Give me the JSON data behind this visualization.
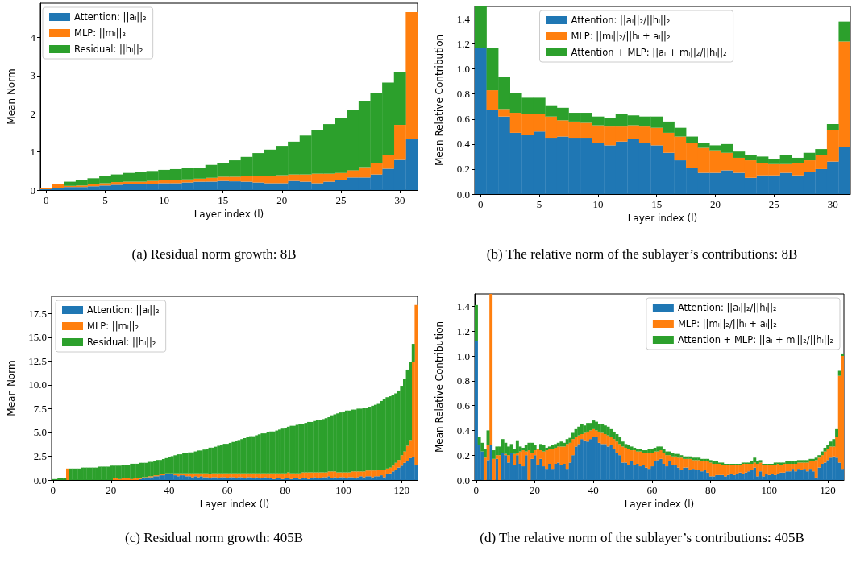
{
  "chart_data": [
    {
      "type": "bar",
      "title": "(a) Residual norm growth: 8B",
      "xlabel": "Layer index (l)",
      "ylabel": "Mean Norm",
      "legend": "top left",
      "stacked": true,
      "x": [
        0,
        1,
        2,
        3,
        4,
        5,
        6,
        7,
        8,
        9,
        10,
        11,
        12,
        13,
        14,
        15,
        16,
        17,
        18,
        19,
        20,
        21,
        22,
        23,
        24,
        25,
        26,
        27,
        28,
        29,
        30,
        31
      ],
      "xlim": [
        -0.5,
        31.5
      ],
      "xticks": [
        0,
        5,
        10,
        15,
        20,
        25,
        30
      ],
      "ylim": [
        0,
        4.9
      ],
      "yticks": [
        0,
        1,
        2,
        3,
        4
      ],
      "series": [
        {
          "name": "Attention: ||aₗ||₂",
          "color": "#1f77b4",
          "values": [
            0.02,
            0.06,
            0.08,
            0.08,
            0.1,
            0.12,
            0.14,
            0.15,
            0.15,
            0.16,
            0.18,
            0.18,
            0.2,
            0.22,
            0.22,
            0.24,
            0.23,
            0.22,
            0.2,
            0.18,
            0.18,
            0.24,
            0.22,
            0.18,
            0.22,
            0.26,
            0.33,
            0.33,
            0.41,
            0.56,
            0.79,
            1.33
          ]
        },
        {
          "name": "MLP: ||mₗ||₂",
          "color": "#ff7f0e",
          "values": [
            0.03,
            0.09,
            0.03,
            0.04,
            0.06,
            0.06,
            0.07,
            0.07,
            0.07,
            0.08,
            0.08,
            0.08,
            0.08,
            0.08,
            0.1,
            0.11,
            0.12,
            0.15,
            0.17,
            0.19,
            0.21,
            0.17,
            0.19,
            0.25,
            0.21,
            0.19,
            0.19,
            0.27,
            0.3,
            0.36,
            0.92,
            3.34
          ]
        },
        {
          "name": "Residual: ||hₗ||₂",
          "color": "#2ca02c",
          "values": [
            null,
            null,
            0.11,
            0.14,
            0.15,
            0.18,
            0.2,
            0.23,
            0.25,
            0.26,
            0.27,
            0.29,
            0.29,
            0.29,
            0.34,
            0.35,
            0.43,
            0.5,
            0.6,
            0.69,
            0.77,
            0.86,
            1.02,
            1.15,
            1.3,
            1.45,
            1.57,
            1.74,
            1.84,
            1.9,
            1.38,
            null
          ]
        }
      ]
    },
    {
      "type": "bar",
      "title": "(b) The relative norm of the sublayer’s contributions: 8B",
      "xlabel": "Layer index (l)",
      "ylabel": "Mean Relative Contribution",
      "legend": "top",
      "stacked": true,
      "x": [
        0,
        1,
        2,
        3,
        4,
        5,
        6,
        7,
        8,
        9,
        10,
        11,
        12,
        13,
        14,
        15,
        16,
        17,
        18,
        19,
        20,
        21,
        22,
        23,
        24,
        25,
        26,
        27,
        28,
        29,
        30,
        31
      ],
      "xlim": [
        -0.5,
        31.5
      ],
      "xticks": [
        0,
        5,
        10,
        15,
        20,
        25,
        30
      ],
      "ylim": [
        0,
        1.5
      ],
      "yticks": [
        {
          "value": 0,
          "label": "0.0"
        },
        {
          "value": 0.2,
          "label": "0.2"
        },
        {
          "value": 0.4,
          "label": "0.4"
        },
        {
          "value": 0.6,
          "label": "0.6"
        },
        {
          "value": 0.8,
          "label": "0.8"
        },
        {
          "value": 1,
          "label": "1.0"
        },
        {
          "value": 1.2,
          "label": "1.2"
        },
        {
          "value": 1.4,
          "label": "1.4"
        }
      ],
      "series": [
        {
          "name": "Attention: ||aₗ||₂/||hₗ||₂",
          "color": "#1f77b4",
          "values": [
            1.17,
            0.67,
            0.62,
            0.49,
            0.47,
            0.5,
            0.45,
            0.46,
            0.45,
            0.45,
            0.41,
            0.39,
            0.42,
            0.44,
            0.41,
            0.39,
            0.33,
            0.27,
            0.21,
            0.17,
            0.17,
            0.19,
            0.17,
            0.13,
            0.15,
            0.15,
            0.17,
            0.15,
            0.18,
            0.2,
            0.26,
            0.38
          ]
        },
        {
          "name": "MLP: ||mₗ||₂/||hₗ + aₗ||₂",
          "color": "#ff7f0e",
          "values": [
            null,
            0.16,
            0.06,
            0.16,
            0.17,
            0.14,
            0.17,
            0.13,
            0.13,
            0.12,
            0.14,
            0.15,
            0.12,
            0.11,
            0.13,
            0.14,
            0.16,
            0.19,
            0.2,
            0.2,
            0.18,
            0.14,
            0.12,
            0.14,
            0.1,
            0.09,
            0.07,
            0.1,
            0.09,
            0.11,
            0.25,
            0.84
          ]
        },
        {
          "name": "Attention + MLP: ||aₗ + mₗ||₂/||hₗ||₂",
          "color": "#2ca02c",
          "values": [
            0.33,
            0.34,
            0.26,
            0.16,
            0.13,
            0.13,
            0.09,
            0.1,
            0.07,
            0.08,
            0.07,
            0.07,
            0.1,
            0.08,
            0.08,
            0.09,
            0.09,
            0.07,
            0.05,
            0.04,
            0.04,
            0.07,
            0.05,
            0.04,
            0.05,
            0.04,
            0.07,
            0.04,
            0.06,
            0.05,
            0.05,
            0.16
          ]
        }
      ]
    },
    {
      "type": "bar",
      "title": "(c) Residual norm growth: 405B",
      "xlabel": "Layer index (l)",
      "ylabel": "Mean Norm",
      "legend": "top left",
      "stacked": true,
      "x": [
        0,
        1,
        2,
        3,
        4,
        5,
        6,
        7,
        8,
        9,
        10,
        11,
        12,
        13,
        14,
        15,
        16,
        17,
        18,
        19,
        20,
        21,
        22,
        23,
        24,
        25,
        26,
        27,
        28,
        29,
        30,
        31,
        32,
        33,
        34,
        35,
        36,
        37,
        38,
        39,
        40,
        41,
        42,
        43,
        44,
        45,
        46,
        47,
        48,
        49,
        50,
        51,
        52,
        53,
        54,
        55,
        56,
        57,
        58,
        59,
        60,
        61,
        62,
        63,
        64,
        65,
        66,
        67,
        68,
        69,
        70,
        71,
        72,
        73,
        74,
        75,
        76,
        77,
        78,
        79,
        80,
        81,
        82,
        83,
        84,
        85,
        86,
        87,
        88,
        89,
        90,
        91,
        92,
        93,
        94,
        95,
        96,
        97,
        98,
        99,
        100,
        101,
        102,
        103,
        104,
        105,
        106,
        107,
        108,
        109,
        110,
        111,
        112,
        113,
        114,
        115,
        116,
        117,
        118,
        119,
        120,
        121,
        122,
        123,
        124,
        125
      ],
      "xlim": [
        -0.5,
        125.5
      ],
      "xticks": [
        0,
        20,
        40,
        60,
        80,
        100,
        120
      ],
      "ylim": [
        0,
        19.3
      ],
      "yticks": [
        {
          "value": 0,
          "label": "0.0"
        },
        {
          "value": 2.5,
          "label": "2.5"
        },
        {
          "value": 5,
          "label": "5.0"
        },
        {
          "value": 7.5,
          "label": "7.5"
        },
        {
          "value": 10,
          "label": "10.0"
        },
        {
          "value": 12.5,
          "label": "12.5"
        },
        {
          "value": 15,
          "label": "15.0"
        },
        {
          "value": 17.5,
          "label": "17.5"
        }
      ],
      "series": [
        {
          "name": "Attention: ||aₗ||₂",
          "color": "#1f77b4",
          "values": [
            null,
            null,
            null,
            null,
            null,
            null,
            null,
            null,
            null,
            null,
            null,
            null,
            null,
            null,
            null,
            null,
            null,
            null,
            null,
            null,
            null,
            null,
            null,
            null,
            null,
            null,
            null,
            null,
            null,
            null,
            0.1,
            0.2,
            0.2,
            0.3,
            0.3,
            0.4,
            0.4,
            0.5,
            0.5,
            0.6,
            0.6,
            0.6,
            0.5,
            0.4,
            0.5,
            0.5,
            0.4,
            0.4,
            0.3,
            0.4,
            0.3,
            0.4,
            0.3,
            0.3,
            0.2,
            0.3,
            0.3,
            0.2,
            0.3,
            0.3,
            0.2,
            0.3,
            0.3,
            0.2,
            0.3,
            0.3,
            0.2,
            0.3,
            0.3,
            0.2,
            0.3,
            0.2,
            0.2,
            0.3,
            0.2,
            0.2,
            0.1,
            0.2,
            0.2,
            0.1,
            0.2,
            0.2,
            0.1,
            0.2,
            0.2,
            0.1,
            0.2,
            0.2,
            0.1,
            0.2,
            0.3,
            0.2,
            0.2,
            0.3,
            0.3,
            0.4,
            0.2,
            0.3,
            0.2,
            0.3,
            0.3,
            0.2,
            0.3,
            0.3,
            0.2,
            0.3,
            0.4,
            0.3,
            0.4,
            0.4,
            0.3,
            0.4,
            0.4,
            0.5,
            0.3,
            0.6,
            0.7,
            0.9,
            1.1,
            1.3,
            1.5,
            1.8,
            2.0,
            2.3,
            2.4,
            1.6
          ]
        },
        {
          "name": "MLP: ||mₗ||₂",
          "color": "#ff7f0e",
          "values": [
            null,
            null,
            null,
            null,
            null,
            1.2,
            null,
            null,
            null,
            null,
            null,
            null,
            null,
            null,
            null,
            null,
            null,
            null,
            null,
            null,
            null,
            0.2,
            0.2,
            0.1,
            0.2,
            0.2,
            0.2,
            0.1,
            0.2,
            0.2,
            0.1,
            0.1,
            0.1,
            0.1,
            0.1,
            0.1,
            0.1,
            0.1,
            0.1,
            0.1,
            0.1,
            0.1,
            0.2,
            0.3,
            0.2,
            0.2,
            0.3,
            0.3,
            0.4,
            0.3,
            0.4,
            0.3,
            0.4,
            0.4,
            0.4,
            0.4,
            0.4,
            0.5,
            0.4,
            0.4,
            0.5,
            0.4,
            0.4,
            0.5,
            0.4,
            0.4,
            0.5,
            0.4,
            0.4,
            0.5,
            0.4,
            0.5,
            0.5,
            0.4,
            0.5,
            0.5,
            0.6,
            0.5,
            0.5,
            0.6,
            0.5,
            0.6,
            0.6,
            0.5,
            0.5,
            0.6,
            0.6,
            0.6,
            0.7,
            0.6,
            0.5,
            0.6,
            0.6,
            0.5,
            0.5,
            0.5,
            0.7,
            0.6,
            0.6,
            0.5,
            0.5,
            0.6,
            0.5,
            0.6,
            0.7,
            0.6,
            0.5,
            0.6,
            0.6,
            0.6,
            0.7,
            0.6,
            0.7,
            0.6,
            0.8,
            0.6,
            0.6,
            0.6,
            0.7,
            0.8,
            1.1,
            1.2,
            1.6,
            1.9,
            10.0,
            16.8
          ]
        },
        {
          "name": "Residual: ||hₗ||₂",
          "color": "#2ca02c",
          "values": [
            0.1,
            0.1,
            0.2,
            0.2,
            0.2,
            null,
            1.2,
            1.2,
            1.2,
            1.2,
            1.3,
            1.3,
            1.3,
            1.3,
            1.3,
            1.3,
            1.4,
            1.4,
            1.4,
            1.4,
            1.5,
            1.3,
            1.3,
            1.4,
            1.4,
            1.4,
            1.4,
            1.6,
            1.5,
            1.5,
            1.6,
            1.5,
            1.5,
            1.5,
            1.5,
            1.5,
            1.6,
            1.5,
            1.6,
            1.6,
            1.7,
            1.8,
            1.9,
            2.0,
            2.0,
            2.1,
            2.1,
            2.2,
            2.2,
            2.3,
            2.4,
            2.4,
            2.5,
            2.6,
            2.8,
            2.7,
            2.8,
            2.9,
            3.0,
            3.1,
            3.1,
            3.2,
            3.3,
            3.4,
            3.5,
            3.6,
            3.7,
            3.8,
            3.9,
            3.9,
            4.0,
            4.1,
            4.2,
            4.2,
            4.3,
            4.4,
            4.4,
            4.5,
            4.6,
            4.7,
            4.8,
            4.8,
            5.0,
            5.0,
            5.1,
            5.2,
            5.1,
            5.2,
            5.3,
            5.3,
            5.4,
            5.5,
            5.5,
            5.6,
            5.7,
            5.7,
            5.9,
            6.0,
            6.2,
            6.3,
            6.4,
            6.5,
            6.5,
            6.5,
            6.5,
            6.6,
            6.6,
            6.7,
            6.6,
            6.7,
            6.8,
            6.9,
            6.9,
            7.2,
            7.4,
            7.5,
            7.5,
            7.4,
            7.3,
            7.3,
            7.3,
            7.6,
            8.0,
            8.2,
            1.9,
            null
          ]
        }
      ]
    },
    {
      "type": "bar",
      "title": "(d) The relative norm of the sublayer’s contributions: 405B",
      "xlabel": "Layer index (l)",
      "ylabel": "Mean Relative Contribution",
      "legend": "top right",
      "stacked": true,
      "x": [
        0,
        1,
        2,
        3,
        4,
        5,
        6,
        7,
        8,
        9,
        10,
        11,
        12,
        13,
        14,
        15,
        16,
        17,
        18,
        19,
        20,
        21,
        22,
        23,
        24,
        25,
        26,
        27,
        28,
        29,
        30,
        31,
        32,
        33,
        34,
        35,
        36,
        37,
        38,
        39,
        40,
        41,
        42,
        43,
        44,
        45,
        46,
        47,
        48,
        49,
        50,
        51,
        52,
        53,
        54,
        55,
        56,
        57,
        58,
        59,
        60,
        61,
        62,
        63,
        64,
        65,
        66,
        67,
        68,
        69,
        70,
        71,
        72,
        73,
        74,
        75,
        76,
        77,
        78,
        79,
        80,
        81,
        82,
        83,
        84,
        85,
        86,
        87,
        88,
        89,
        90,
        91,
        92,
        93,
        94,
        95,
        96,
        97,
        98,
        99,
        100,
        101,
        102,
        103,
        104,
        105,
        106,
        107,
        108,
        109,
        110,
        111,
        112,
        113,
        114,
        115,
        116,
        117,
        118,
        119,
        120,
        121,
        122,
        123,
        124,
        125
      ],
      "xlim": [
        -0.5,
        125.5
      ],
      "xticks": [
        0,
        20,
        40,
        60,
        80,
        100,
        120
      ],
      "ylim": [
        0,
        1.5
      ],
      "yticks": [
        {
          "value": 0,
          "label": "0.0"
        },
        {
          "value": 0.2,
          "label": "0.2"
        },
        {
          "value": 0.4,
          "label": "0.4"
        },
        {
          "value": 0.6,
          "label": "0.6"
        },
        {
          "value": 0.8,
          "label": "0.8"
        },
        {
          "value": 1,
          "label": "1.0"
        },
        {
          "value": 1.2,
          "label": "1.2"
        },
        {
          "value": 1.4,
          "label": "1.4"
        }
      ],
      "series": [
        {
          "name": "Attention: ||aₗ||₂/||hₗ||₂",
          "color": "#1f77b4",
          "values": [
            1.12,
            0.28,
            0.23,
            null,
            0.16,
            0.28,
            null,
            0.17,
            null,
            0.22,
            0.2,
            0.14,
            0.22,
            0.12,
            0.2,
            0.13,
            0.11,
            0.2,
            null,
            0.17,
            0.2,
            0.12,
            0.17,
            0.11,
            0.09,
            0.13,
            0.09,
            0.13,
            0.14,
            0.12,
            0.13,
            0.09,
            0.14,
            0.2,
            0.27,
            0.29,
            0.33,
            0.32,
            0.31,
            0.33,
            0.35,
            0.35,
            0.3,
            0.29,
            0.29,
            0.27,
            0.28,
            0.25,
            0.22,
            0.2,
            0.14,
            0.14,
            0.12,
            0.15,
            0.12,
            0.13,
            0.11,
            0.12,
            0.1,
            0.09,
            0.11,
            0.15,
            0.16,
            0.17,
            0.13,
            0.11,
            0.15,
            0.12,
            0.12,
            0.1,
            0.08,
            0.1,
            0.1,
            0.08,
            0.09,
            0.08,
            0.08,
            0.07,
            0.08,
            0.06,
            0.03,
            0.03,
            0.04,
            0.04,
            0.04,
            0.03,
            0.04,
            0.05,
            0.04,
            0.05,
            0.06,
            0.05,
            0.06,
            0.07,
            0.08,
            0.1,
            0.03,
            0.07,
            0.03,
            0.05,
            0.04,
            0.05,
            0.04,
            0.05,
            0.06,
            0.06,
            0.07,
            0.07,
            0.09,
            0.07,
            0.09,
            0.08,
            0.09,
            0.07,
            0.09,
            0.07,
            0.02,
            0.1,
            0.13,
            0.14,
            0.16,
            0.18,
            0.19,
            0.18,
            0.14,
            0.09
          ]
        },
        {
          "name": "MLP: ||mₗ||₂/||hₗ + aₗ||₂",
          "color": "#ff7f0e",
          "values": [
            null,
            null,
            null,
            0.18,
            0.12,
            1.22,
            0.17,
            0.03,
            0.2,
            null,
            0.01,
            0.06,
            null,
            0.09,
            0.02,
            0.1,
            0.13,
            0.03,
            0.24,
            0.05,
            0.04,
            0.13,
            0.07,
            0.12,
            0.15,
            0.12,
            0.16,
            0.13,
            0.13,
            0.15,
            0.14,
            0.2,
            0.16,
            0.13,
            0.08,
            0.07,
            0.04,
            0.06,
            0.08,
            0.07,
            0.06,
            0.05,
            0.09,
            0.09,
            0.08,
            0.09,
            0.07,
            0.08,
            0.09,
            0.09,
            0.13,
            0.12,
            0.13,
            0.09,
            0.12,
            0.1,
            0.12,
            0.1,
            0.12,
            0.13,
            0.11,
            0.08,
            0.07,
            0.07,
            0.09,
            0.09,
            0.05,
            0.07,
            0.07,
            0.08,
            0.1,
            0.07,
            0.07,
            0.09,
            0.07,
            0.08,
            0.08,
            0.08,
            0.07,
            0.09,
            0.11,
            0.1,
            0.09,
            0.09,
            0.08,
            0.09,
            0.08,
            0.07,
            0.08,
            0.07,
            0.06,
            0.08,
            0.07,
            0.06,
            0.05,
            0.04,
            0.1,
            0.07,
            0.09,
            0.07,
            0.08,
            0.07,
            0.08,
            0.08,
            0.06,
            0.07,
            0.06,
            0.06,
            0.04,
            0.06,
            0.05,
            0.06,
            0.05,
            0.07,
            0.06,
            0.08,
            0.14,
            0.08,
            0.07,
            0.09,
            0.09,
            0.09,
            0.08,
            0.17,
            0.7,
            0.91
          ]
        },
        {
          "name": "Attention + MLP: ||aₗ + mₗ||₂/||hₗ||₂",
          "color": "#2ca02c",
          "values": [
            0.29,
            0.07,
            0.07,
            0.07,
            0.12,
            null,
            0.07,
            0.07,
            0.07,
            0.11,
            0.09,
            0.07,
            0.07,
            0.04,
            0.1,
            0.04,
            0.02,
            0.05,
            0.06,
            0.08,
            0.04,
            null,
            0.05,
            0.05,
            0.02,
            0.02,
            0.03,
            0.03,
            0.03,
            0.04,
            0.03,
            0.04,
            0.04,
            0.05,
            0.06,
            0.07,
            0.08,
            0.06,
            0.07,
            0.06,
            0.07,
            0.07,
            0.06,
            0.07,
            0.07,
            0.07,
            0.06,
            0.06,
            0.06,
            0.06,
            0.04,
            0.03,
            0.03,
            0.03,
            0.02,
            0.02,
            0.02,
            0.02,
            0.02,
            0.03,
            0.03,
            0.03,
            0.04,
            0.03,
            0.03,
            0.03,
            0.03,
            0.03,
            0.02,
            0.03,
            0.02,
            0.02,
            0.02,
            0.02,
            0.02,
            0.02,
            0.02,
            0.02,
            0.02,
            0.02,
            0.02,
            0.02,
            0.02,
            0.01,
            0.02,
            0.01,
            0.01,
            0.01,
            0.01,
            0.01,
            0.01,
            0.01,
            0.01,
            0.01,
            0.02,
            0.04,
            0.02,
            0.02,
            0.01,
            0.01,
            0.01,
            0.01,
            0.02,
            0.01,
            0.02,
            0.01,
            0.02,
            0.02,
            0.02,
            0.02,
            0.02,
            0.02,
            0.02,
            0.02,
            0.02,
            0.02,
            0.02,
            0.02,
            0.03,
            0.03,
            0.03,
            0.04,
            0.06,
            0.06,
            0.04,
            0.02
          ]
        }
      ]
    }
  ]
}
